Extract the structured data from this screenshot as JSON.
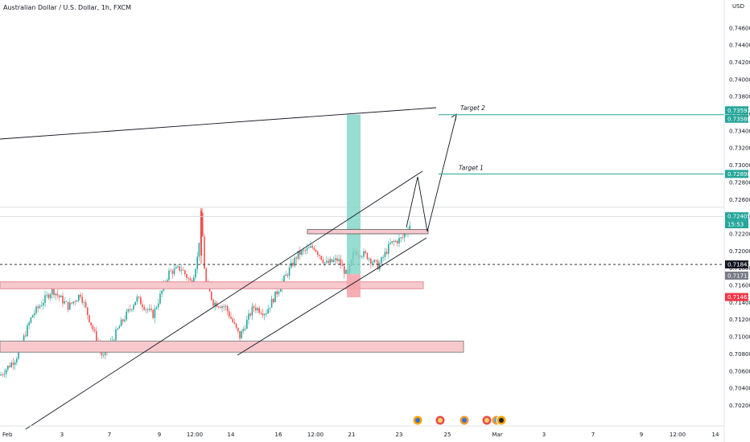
{
  "header": {
    "title": "Australian Dollar / U.S. Dollar, 1h, FXCM",
    "currency": "USD"
  },
  "colors": {
    "up": "#26a69a",
    "down": "#ef5350",
    "zone_fill": "#f7c9cd",
    "zone_stroke": "#e58a93",
    "target_line": "#26a69a",
    "badge_green": "#26a69a",
    "badge_dark": "#131722",
    "badge_gray": "#787b86",
    "badge_red": "#f23645",
    "profit": "#7fd3c5",
    "loss": "#f4a5ab"
  },
  "chart_data": {
    "type": "candlestick",
    "title": "Australian Dollar / U.S. Dollar, 1h, FXCM",
    "ylim": [
      0.7012,
      0.7486
    ],
    "y_ticks": [
      "0.74600",
      "0.74400",
      "0.74200",
      "0.74000",
      "0.73800",
      "0.73600",
      "0.73400",
      "0.73200",
      "0.73000",
      "0.72800",
      "0.72600",
      "0.72400",
      "0.72200",
      "0.72000",
      "0.71800",
      "0.71600",
      "0.71400",
      "0.71200",
      "0.71000",
      "0.70800",
      "0.70600",
      "0.70400",
      "0.70200"
    ],
    "x_ticks": [
      "Feb",
      "3",
      "7",
      "9",
      "12:00",
      "14",
      "16",
      "12:00",
      "21",
      "23",
      "25",
      "Mar",
      "3",
      "7",
      "9",
      "12:00",
      "14"
    ],
    "price_path": [
      [
        0,
        0.7055
      ],
      [
        20,
        0.7075
      ],
      [
        40,
        0.7125
      ],
      [
        65,
        0.7155
      ],
      [
        85,
        0.7135
      ],
      [
        100,
        0.715
      ],
      [
        115,
        0.711
      ],
      [
        128,
        0.7075
      ],
      [
        150,
        0.7115
      ],
      [
        170,
        0.7145
      ],
      [
        190,
        0.7125
      ],
      [
        210,
        0.7175
      ],
      [
        225,
        0.718
      ],
      [
        238,
        0.7162
      ],
      [
        246,
        0.7195
      ],
      [
        250,
        0.7245
      ],
      [
        255,
        0.7165
      ],
      [
        265,
        0.714
      ],
      [
        280,
        0.7135
      ],
      [
        298,
        0.71
      ],
      [
        315,
        0.7135
      ],
      [
        330,
        0.7128
      ],
      [
        350,
        0.7162
      ],
      [
        370,
        0.7196
      ],
      [
        390,
        0.7205
      ],
      [
        405,
        0.7185
      ],
      [
        420,
        0.719
      ],
      [
        432,
        0.717
      ],
      [
        440,
        0.72
      ],
      [
        455,
        0.7195
      ],
      [
        470,
        0.7182
      ],
      [
        485,
        0.7208
      ],
      [
        500,
        0.7215
      ],
      [
        510,
        0.7232
      ]
    ],
    "price_labels": [
      {
        "key": "target2_upper",
        "value": "0.73593",
        "kind": "green"
      },
      {
        "key": "target2",
        "value": "0.73588",
        "kind": "green"
      },
      {
        "key": "target1",
        "value": "0.72898",
        "kind": "green"
      },
      {
        "key": "last",
        "value": "0.72405",
        "kind": "green"
      },
      {
        "key": "countdown",
        "value": "15:53",
        "kind": "green"
      },
      {
        "key": "hline",
        "value": "0.71843",
        "kind": "dark"
      },
      {
        "key": "prev",
        "value": "0.71713",
        "kind": "gray"
      },
      {
        "key": "stop",
        "value": "0.71463",
        "kind": "red"
      }
    ],
    "levels": {
      "target2": 0.73588,
      "target1": 0.72898,
      "last": 0.72405,
      "hline": 0.71843,
      "prev": 0.71713,
      "stop": 0.71463
    },
    "annotations": [
      "Target 2",
      "Target 1"
    ],
    "support_zones": [
      {
        "label": "upper",
        "price_top": 0.7164,
        "price_bottom": 0.7156
      },
      {
        "label": "lower",
        "price_top": 0.7095,
        "price_bottom": 0.7082
      }
    ],
    "consolidation_box": {
      "price_top": 0.7225,
      "price_bottom": 0.722
    },
    "position": {
      "entry": 0.7173,
      "target": 0.7359,
      "stop": 0.7146
    },
    "grid": false,
    "legend": "none"
  }
}
